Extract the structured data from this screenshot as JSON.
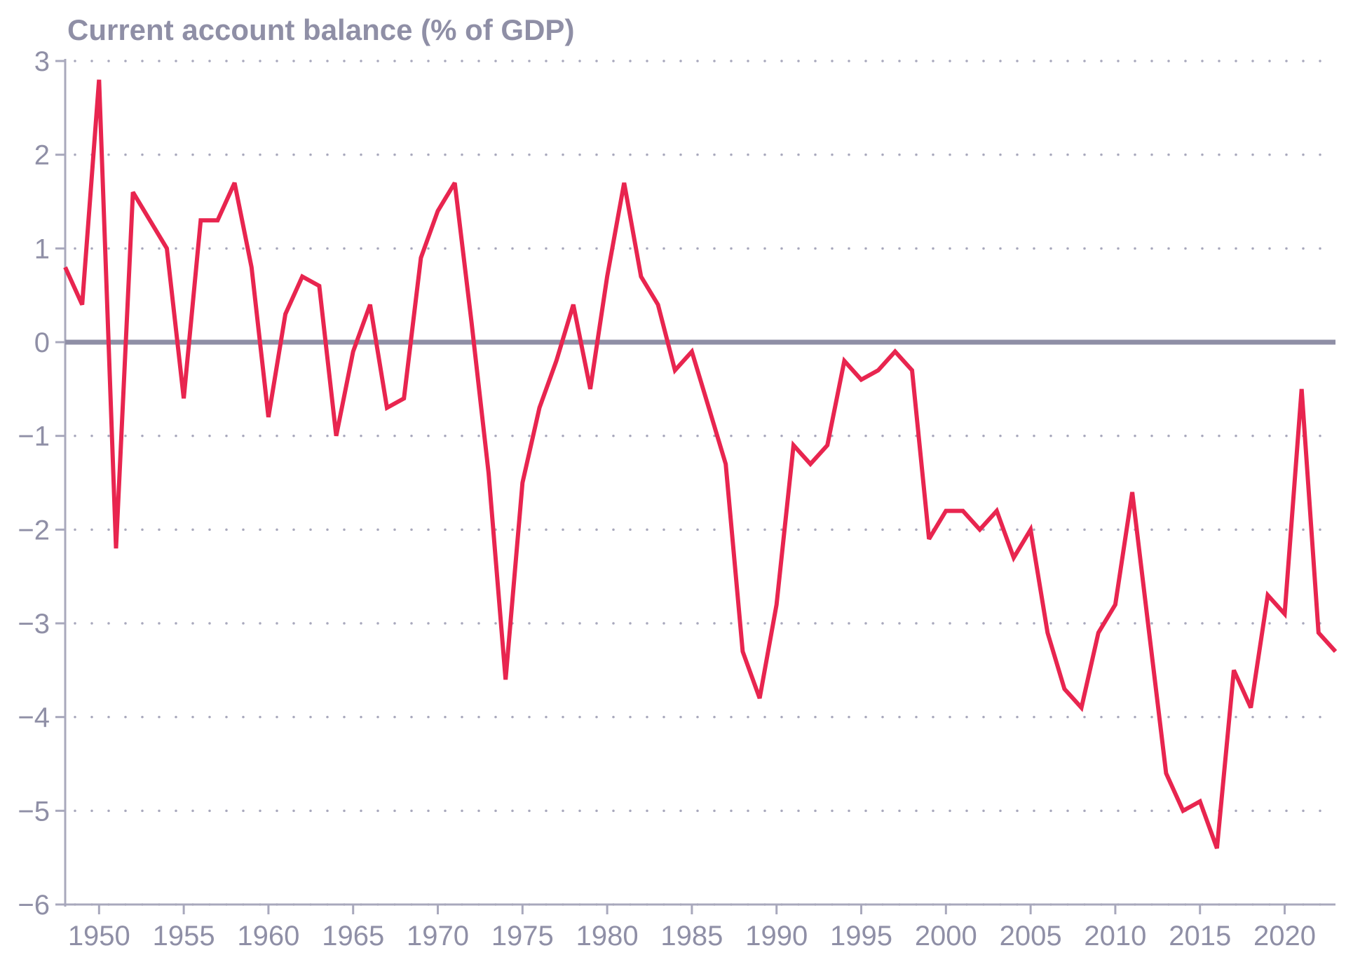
{
  "chart_data": {
    "type": "line",
    "title": "Current account balance (% of GDP)",
    "xlabel": "",
    "ylabel": "Current account balance (% of GDP)",
    "xlim": [
      1948,
      2023
    ],
    "ylim": [
      -6,
      3
    ],
    "x_ticks": [
      1950,
      1955,
      1960,
      1965,
      1970,
      1975,
      1980,
      1985,
      1990,
      1995,
      2000,
      2005,
      2010,
      2015,
      2020
    ],
    "y_ticks": [
      3,
      2,
      1,
      0,
      -1,
      -2,
      -3,
      -4,
      -5,
      -6
    ],
    "y_tick_labels": [
      "3",
      "2",
      "1",
      "0",
      "−1",
      "−2",
      "−3",
      "−4",
      "−5",
      "−6"
    ],
    "grid": "horizontal dotted",
    "zero_line": true,
    "colors": {
      "line": "#e8254f",
      "axis": "#a8a8bc",
      "zero_line": "#8f8fa6",
      "text": "#8f8fa6",
      "grid": "#a8a8bc"
    },
    "series": [
      {
        "x": [
          1948,
          1949,
          1950,
          1951,
          1952,
          1953,
          1954,
          1955,
          1956,
          1957,
          1958,
          1959,
          1960,
          1961,
          1962,
          1963,
          1964,
          1965,
          1966,
          1967,
          1968,
          1969,
          1970,
          1971,
          1972,
          1973,
          1974,
          1975,
          1976,
          1977,
          1978,
          1979,
          1980,
          1981,
          1982,
          1983,
          1984,
          1985,
          1986,
          1987,
          1988,
          1989,
          1990,
          1991,
          1992,
          1993,
          1994,
          1995,
          1996,
          1997,
          1998,
          1999,
          2000,
          2001,
          2002,
          2003,
          2004,
          2005,
          2006,
          2007,
          2008,
          2009,
          2010,
          2011,
          2012,
          2013,
          2014,
          2015,
          2016,
          2017,
          2018,
          2019,
          2020,
          2021,
          2022,
          2023
        ],
        "values": [
          0.8,
          0.4,
          2.8,
          -2.2,
          1.6,
          1.3,
          1.0,
          -0.6,
          1.3,
          1.3,
          1.7,
          0.8,
          -0.8,
          0.3,
          0.7,
          0.6,
          -1.0,
          -0.1,
          0.4,
          -0.7,
          -0.6,
          0.9,
          1.4,
          1.7,
          0.2,
          -1.4,
          -3.6,
          -1.5,
          -0.7,
          -0.2,
          0.4,
          -0.5,
          0.7,
          1.7,
          0.7,
          0.4,
          -0.3,
          -0.1,
          -0.7,
          -1.3,
          -3.3,
          -3.8,
          -2.8,
          -1.1,
          -1.3,
          -1.1,
          -0.2,
          -0.4,
          -0.3,
          -0.1,
          -0.3,
          -2.1,
          -1.8,
          -1.8,
          -2.0,
          -1.8,
          -2.3,
          -2.0,
          -3.1,
          -3.7,
          -3.9,
          -3.1,
          -2.8,
          -1.6,
          -3.1,
          -4.6,
          -5.0,
          -4.9,
          -5.4,
          -3.5,
          -3.9,
          -2.7,
          -2.9,
          -0.5,
          -3.1,
          -3.3
        ]
      }
    ]
  }
}
